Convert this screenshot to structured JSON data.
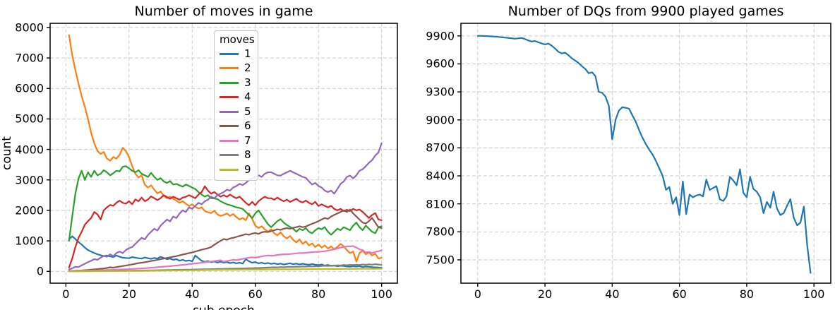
{
  "figure": {
    "background": "#ffffff",
    "grid_color": "#cccccc",
    "axis_color": "#000000"
  },
  "chart_data": [
    {
      "type": "line",
      "title": "Number of moves in game",
      "xlabel": "sub epoch",
      "ylabel": "count",
      "x_start": 1,
      "xticks": [
        0,
        20,
        40,
        60,
        80,
        100
      ],
      "yticks": [
        0,
        1000,
        2000,
        3000,
        4000,
        5000,
        6000,
        7000,
        8000
      ],
      "xlim": [
        -5,
        105
      ],
      "ylim": [
        -387,
        8137
      ],
      "grid": true,
      "legend": {
        "title": "moves",
        "position": "upper center"
      },
      "series": [
        {
          "name": "1",
          "color": "#1f77b4",
          "values": [
            1050,
            1150,
            1060,
            960,
            880,
            780,
            700,
            650,
            600,
            560,
            530,
            500,
            520,
            490,
            470,
            520,
            480,
            450,
            440,
            430,
            470,
            450,
            430,
            420,
            455,
            430,
            410,
            440,
            420,
            480,
            440,
            400,
            420,
            380,
            400,
            350,
            380,
            340,
            360,
            330,
            520,
            430,
            350,
            310,
            340,
            300,
            325,
            290,
            315,
            285,
            305,
            270,
            295,
            265,
            285,
            255,
            400,
            330,
            285,
            305,
            265,
            285,
            255,
            275,
            245,
            265,
            235,
            255,
            225,
            245,
            265,
            235,
            255,
            225,
            250,
            230,
            215,
            240,
            220,
            205,
            225,
            190,
            210,
            178,
            195,
            168,
            185,
            175,
            160,
            152,
            170,
            158,
            172,
            142,
            158,
            150,
            138,
            132,
            125,
            118
          ]
        },
        {
          "name": "2",
          "color": "#ff7f0e",
          "values": [
            7750,
            7100,
            6600,
            6150,
            5750,
            5400,
            5000,
            4550,
            4200,
            3950,
            3850,
            3920,
            3700,
            3630,
            3750,
            3700,
            3820,
            4050,
            3950,
            3750,
            3450,
            3200,
            3080,
            3150,
            2840,
            2750,
            2820,
            2680,
            2560,
            2620,
            2480,
            2400,
            2450,
            2380,
            2320,
            2250,
            2300,
            2220,
            2150,
            2200,
            2120,
            2060,
            2100,
            1980,
            1940,
            1910,
            1990,
            1870,
            1820,
            1850,
            1900,
            1820,
            1880,
            1780,
            1700,
            1750,
            1680,
            1900,
            1720,
            1500,
            1420,
            1480,
            1380,
            1300,
            1380,
            1250,
            1180,
            1280,
            1150,
            1080,
            1160,
            1030,
            950,
            1050,
            900,
            980,
            850,
            920,
            800,
            880,
            780,
            850,
            750,
            820,
            730,
            800,
            900,
            820,
            700,
            600,
            650,
            320,
            600,
            680,
            560,
            620,
            520,
            580,
            420,
            450
          ]
        },
        {
          "name": "3",
          "color": "#2ca02c",
          "values": [
            1000,
            1800,
            2550,
            3050,
            3300,
            3000,
            3250,
            3100,
            3300,
            3150,
            3200,
            3320,
            3250,
            3150,
            3220,
            3300,
            3280,
            3430,
            3450,
            3380,
            3300,
            3250,
            3320,
            3200,
            3150,
            3100,
            3230,
            3100,
            3000,
            3060,
            2950,
            2900,
            2960,
            2850,
            2870,
            2820,
            2780,
            2850,
            2800,
            2750,
            2700,
            2600,
            2520,
            2450,
            2500,
            2400,
            2390,
            2370,
            2300,
            2250,
            2200,
            2175,
            2140,
            2100,
            2080,
            2050,
            1950,
            1850,
            1750,
            1900,
            2000,
            1850,
            1700,
            1550,
            1450,
            1550,
            1650,
            1710,
            1600,
            1520,
            1460,
            1400,
            1300,
            1400,
            1350,
            1420,
            1300,
            1250,
            1350,
            1420,
            1380,
            1450,
            1300,
            1200,
            1300,
            1400,
            1350,
            1450,
            1400,
            1350,
            1500,
            1600,
            1450,
            1350,
            1500,
            1400,
            1300,
            1250,
            1450,
            1480
          ]
        },
        {
          "name": "4",
          "color": "#d62728",
          "values": [
            130,
            420,
            800,
            1100,
            1300,
            1530,
            1650,
            1750,
            1950,
            1870,
            1700,
            2000,
            2100,
            2180,
            2150,
            2250,
            2320,
            2250,
            2220,
            2300,
            2200,
            2360,
            2300,
            2420,
            2300,
            2360,
            2460,
            2400,
            2340,
            2400,
            2500,
            2440,
            2380,
            2450,
            2400,
            2350,
            2420,
            2445,
            2500,
            2450,
            2400,
            2520,
            2600,
            2790,
            2650,
            2550,
            2600,
            2520,
            2450,
            2500,
            2445,
            2520,
            2450,
            2400,
            2450,
            2350,
            2250,
            2170,
            2280,
            2170,
            2300,
            2380,
            2450,
            2400,
            2400,
            2350,
            2420,
            2350,
            2300,
            2350,
            2280,
            2330,
            2380,
            2300,
            2260,
            2320,
            2250,
            2200,
            2280,
            2145,
            2200,
            2150,
            2100,
            2150,
            2050,
            2000,
            2050,
            1980,
            2020,
            1980,
            2050,
            2000,
            2030,
            1950,
            1850,
            1750,
            1850,
            1910,
            1700,
            1680
          ]
        },
        {
          "name": "5",
          "color": "#9467bd",
          "values": [
            60,
            100,
            150,
            140,
            200,
            250,
            300,
            350,
            400,
            380,
            450,
            510,
            480,
            560,
            500,
            600,
            650,
            600,
            700,
            760,
            800,
            900,
            1000,
            1100,
            1050,
            1200,
            1300,
            1400,
            1340,
            1500,
            1600,
            1700,
            1640,
            1800,
            1750,
            1900,
            2000,
            1950,
            2100,
            2050,
            2150,
            2250,
            2200,
            2300,
            2350,
            2450,
            2400,
            2500,
            2550,
            2600,
            2680,
            2650,
            2750,
            2800,
            2870,
            2830,
            2900,
            3000,
            3050,
            3100,
            3150,
            3100,
            3200,
            3250,
            3255,
            3200,
            3150,
            3140,
            3200,
            3250,
            3300,
            3250,
            3200,
            3150,
            3100,
            3070,
            2950,
            2850,
            2900,
            2800,
            2750,
            2650,
            2600,
            2650,
            2550,
            2700,
            2870,
            2950,
            3100,
            3140,
            3050,
            3150,
            3300,
            3350,
            3450,
            3560,
            3650,
            3800,
            3900,
            4200
          ]
        },
        {
          "name": "6",
          "color": "#8c564b",
          "values": [
            10,
            15,
            20,
            25,
            30,
            40,
            45,
            55,
            65,
            75,
            85,
            95,
            110,
            135,
            120,
            140,
            160,
            175,
            190,
            210,
            230,
            250,
            270,
            285,
            300,
            320,
            340,
            360,
            380,
            400,
            420,
            440,
            460,
            480,
            500,
            525,
            550,
            575,
            600,
            620,
            650,
            680,
            710,
            735,
            760,
            800,
            870,
            940,
            1000,
            1060,
            1040,
            1080,
            1100,
            1130,
            1160,
            1190,
            1220,
            1200,
            1240,
            1260,
            1230,
            1280,
            1300,
            1290,
            1320,
            1350,
            1380,
            1360,
            1400,
            1420,
            1400,
            1430,
            1450,
            1480,
            1450,
            1470,
            1520,
            1560,
            1600,
            1650,
            1700,
            1750,
            1720,
            1800,
            1850,
            1900,
            1950,
            2000,
            1950,
            2030,
            1900,
            1800,
            1700,
            1600,
            1570,
            1650,
            1750,
            1600,
            1450,
            1420
          ]
        },
        {
          "name": "7",
          "color": "#e377c2",
          "values": [
            10,
            12,
            15,
            18,
            20,
            22,
            25,
            28,
            30,
            33,
            36,
            40,
            44,
            48,
            52,
            56,
            60,
            65,
            70,
            75,
            80,
            86,
            92,
            98,
            105,
            112,
            120,
            128,
            136,
            145,
            154,
            163,
            172,
            182,
            192,
            202,
            213,
            224,
            235,
            247,
            259,
            271,
            284,
            297,
            310,
            324,
            338,
            352,
            366,
            320,
            340,
            360,
            380,
            365,
            390,
            410,
            430,
            450,
            460,
            450,
            470,
            490,
            510,
            520,
            515,
            520,
            540,
            550,
            560,
            560,
            570,
            580,
            590,
            600,
            600,
            610,
            620,
            630,
            640,
            640,
            650,
            660,
            680,
            700,
            720,
            750,
            780,
            800,
            820,
            820,
            830,
            780,
            720,
            700,
            620,
            640,
            600,
            640,
            660,
            690
          ]
        },
        {
          "name": "8",
          "color": "#7f7f7f",
          "values": [
            3,
            4,
            5,
            6,
            7,
            8,
            9,
            10,
            11,
            12,
            13,
            14,
            15,
            16,
            17,
            18,
            20,
            21,
            22,
            24,
            25,
            27,
            28,
            30,
            31,
            33,
            35,
            36,
            38,
            40,
            42,
            44,
            46,
            48,
            50,
            52,
            54,
            56,
            58,
            60,
            62,
            64,
            66,
            68,
            70,
            73,
            75,
            78,
            80,
            83,
            85,
            88,
            90,
            93,
            95,
            98,
            100,
            103,
            105,
            108,
            110,
            115,
            120,
            125,
            130,
            135,
            130,
            140,
            135,
            145,
            150,
            145,
            155,
            150,
            160,
            155,
            165,
            160,
            170,
            165,
            175,
            185,
            175,
            190,
            185,
            200,
            195,
            210,
            200,
            215,
            205,
            220,
            210,
            225,
            215,
            230,
            220,
            235,
            225,
            210
          ]
        },
        {
          "name": "9",
          "color": "#bcbd22",
          "values": [
            2,
            2,
            3,
            3,
            4,
            4,
            5,
            5,
            6,
            6,
            7,
            7,
            8,
            9,
            9,
            10,
            11,
            11,
            12,
            13,
            14,
            15,
            16,
            17,
            18,
            19,
            20,
            21,
            22,
            23,
            25,
            26,
            28,
            29,
            31,
            32,
            34,
            35,
            37,
            38,
            40,
            41,
            43,
            44,
            46,
            47,
            48,
            50,
            51,
            52,
            53,
            54,
            55,
            56,
            57,
            58,
            59,
            60,
            60,
            61,
            62,
            62,
            63,
            64,
            64,
            65,
            66,
            66,
            67,
            68,
            68,
            69,
            70,
            70,
            71,
            72,
            72,
            73,
            74,
            74,
            75,
            76,
            76,
            77,
            78,
            78,
            79,
            80,
            80,
            81,
            82,
            82,
            83,
            84,
            84,
            85,
            86,
            86,
            87,
            88
          ]
        }
      ]
    },
    {
      "type": "line",
      "title": "Number of DQs from 9900 played games",
      "x_start": 0,
      "xticks": [
        0,
        20,
        40,
        60,
        80,
        100
      ],
      "yticks": [
        7500,
        7800,
        8100,
        8400,
        8700,
        9000,
        9300,
        9600,
        9900
      ],
      "xlim": [
        -5,
        105
      ],
      "ylim": [
        7250,
        10035
      ],
      "grid": true,
      "series": [
        {
          "color": "#1f77b4",
          "values": [
            9900,
            9900,
            9899,
            9897,
            9895,
            9893,
            9890,
            9886,
            9882,
            9878,
            9875,
            9870,
            9874,
            9878,
            9868,
            9852,
            9840,
            9846,
            9832,
            9820,
            9808,
            9818,
            9795,
            9765,
            9730,
            9712,
            9720,
            9692,
            9660,
            9635,
            9610,
            9575,
            9545,
            9500,
            9510,
            9470,
            9300,
            9290,
            9250,
            9150,
            8790,
            9000,
            9100,
            9135,
            9130,
            9120,
            9050,
            8980,
            8890,
            8810,
            8740,
            8680,
            8630,
            8560,
            8480,
            8400,
            8250,
            8280,
            8100,
            8170,
            7980,
            8340,
            7990,
            8200,
            8170,
            8190,
            8200,
            8180,
            8360,
            8250,
            8270,
            8290,
            8150,
            8130,
            8180,
            8390,
            8350,
            8300,
            8470,
            8220,
            8170,
            8390,
            8260,
            8230,
            8170,
            8000,
            8120,
            8060,
            8230,
            8050,
            7980,
            8000,
            8080,
            8150,
            7950,
            7870,
            7900,
            8070,
            7650,
            7360
          ]
        }
      ]
    }
  ]
}
